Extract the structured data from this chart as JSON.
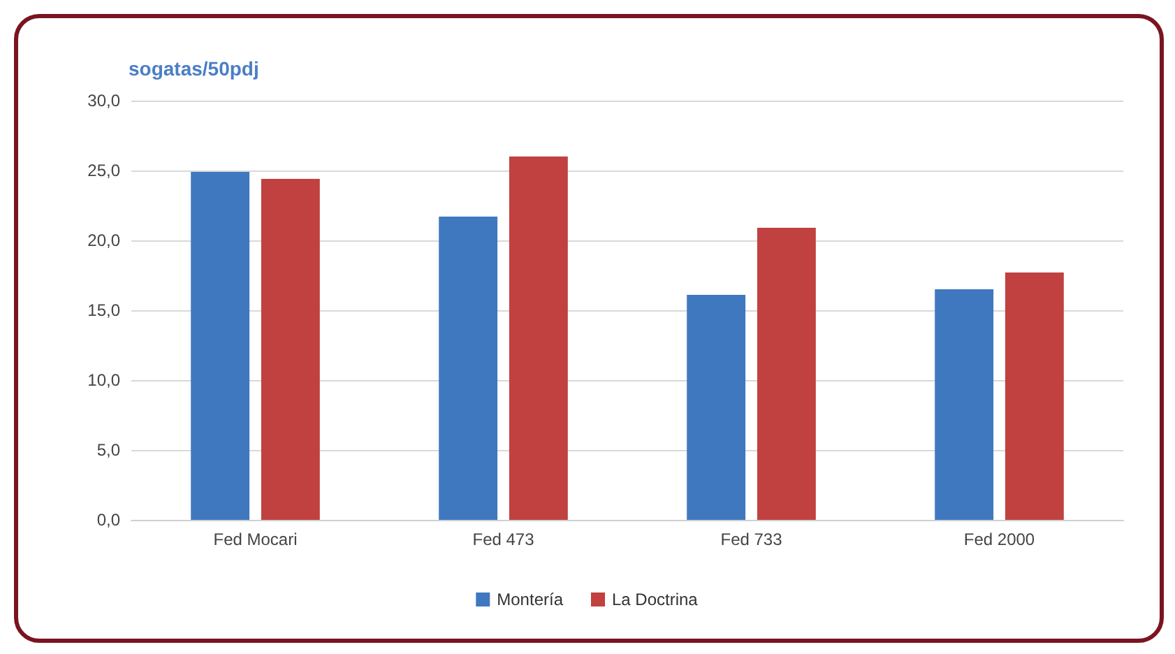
{
  "chart_data": {
    "type": "bar",
    "ylabel": "sogatas/50pdj",
    "categories": [
      "Fed Mocari",
      "Fed 473",
      "Fed 733",
      "Fed 2000"
    ],
    "series": [
      {
        "name": "Montería",
        "color": "#4078c0",
        "values": [
          24.9,
          21.7,
          16.1,
          16.5
        ]
      },
      {
        "name": "La Doctrina",
        "color": "#c0413f",
        "values": [
          24.4,
          26.0,
          20.9,
          17.7
        ]
      }
    ],
    "ylim": [
      0,
      30
    ],
    "yticks": [
      {
        "value": 0,
        "label": "0,0"
      },
      {
        "value": 5,
        "label": "5,0"
      },
      {
        "value": 10,
        "label": "10,0"
      },
      {
        "value": 15,
        "label": "15,0"
      },
      {
        "value": 20,
        "label": "20,0"
      },
      {
        "value": 25,
        "label": "25,0"
      },
      {
        "value": 30,
        "label": "30,0"
      }
    ],
    "grid": "y",
    "legend": "bottom"
  }
}
